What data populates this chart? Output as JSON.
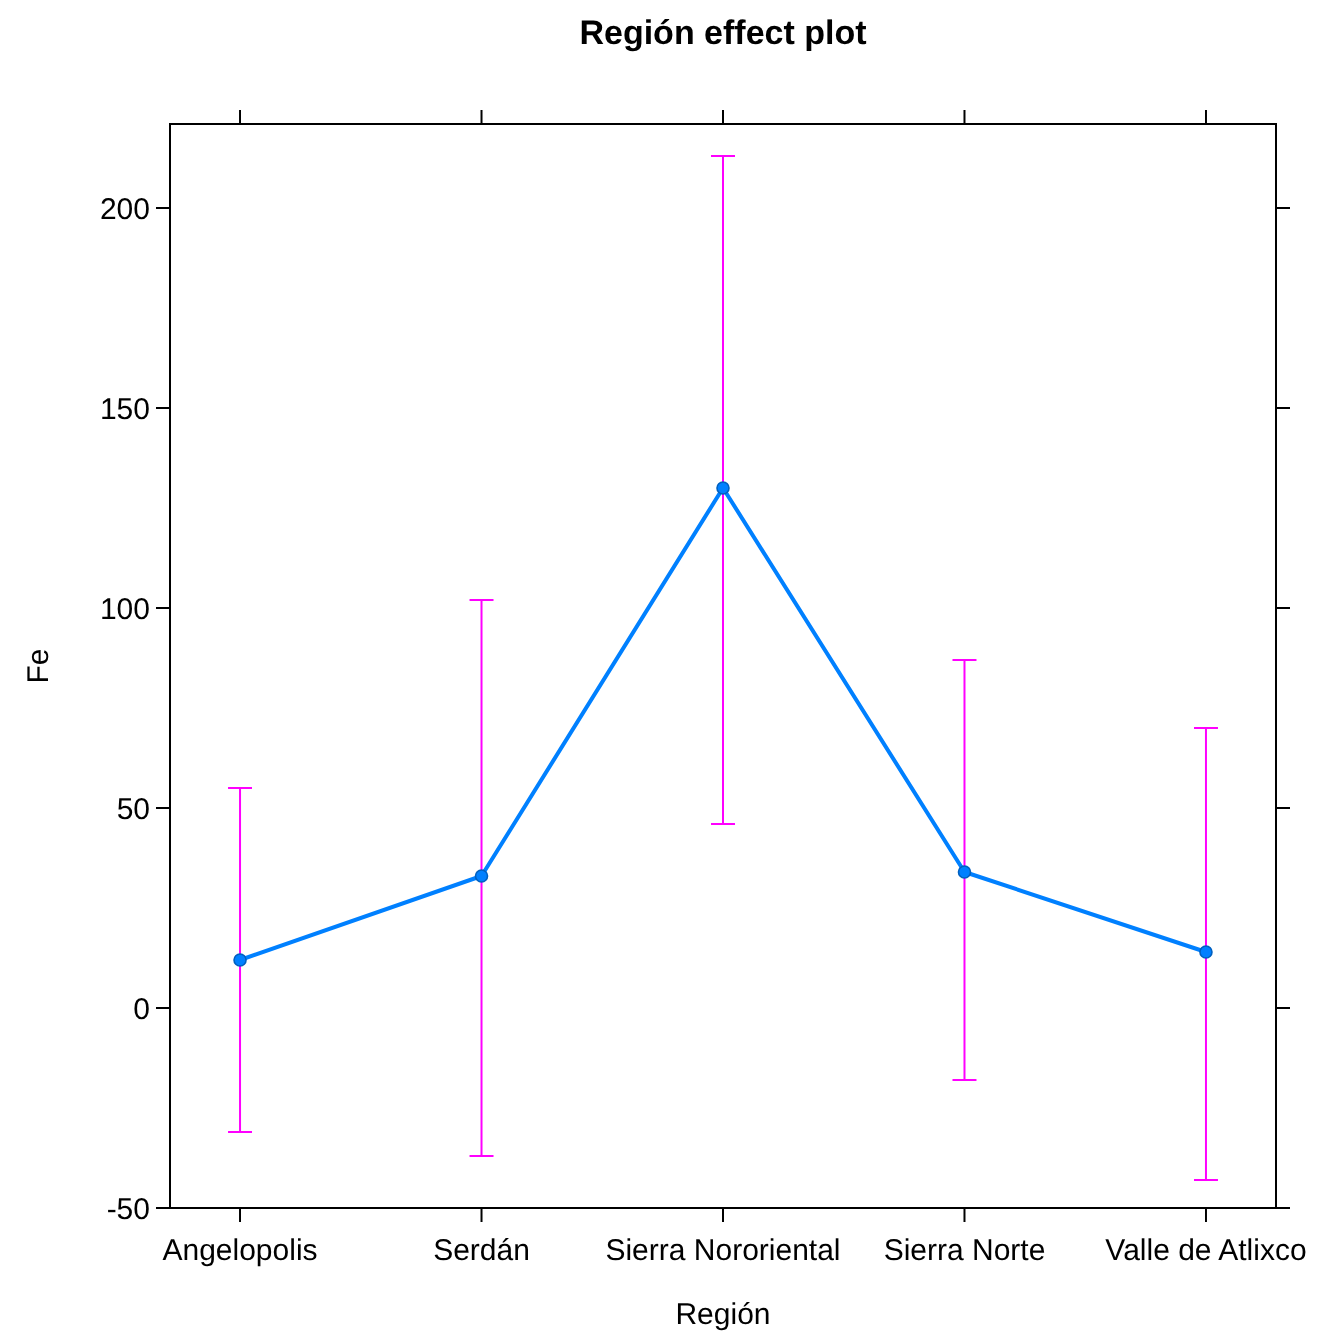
{
  "chart_data": {
    "type": "line",
    "title": "Región effect plot",
    "xlabel": "Región",
    "ylabel": "Fe",
    "categories": [
      "Angelopolis",
      "Serdán",
      "Sierra Nororiental",
      "Sierra Norte",
      "Valle de Atlixco"
    ],
    "series": [
      {
        "color": "#0080ff",
        "values": [
          12,
          33,
          130,
          34,
          14
        ],
        "errors": [
          [
            -31,
            55
          ],
          [
            -37,
            102
          ],
          [
            46,
            213
          ],
          [
            -18,
            87
          ],
          [
            -43,
            70
          ]
        ]
      }
    ],
    "ylim": [
      -50,
      221
    ],
    "yticks": [
      -50,
      0,
      50,
      100,
      150,
      200
    ],
    "marker": "circle",
    "line_style": "solid"
  }
}
